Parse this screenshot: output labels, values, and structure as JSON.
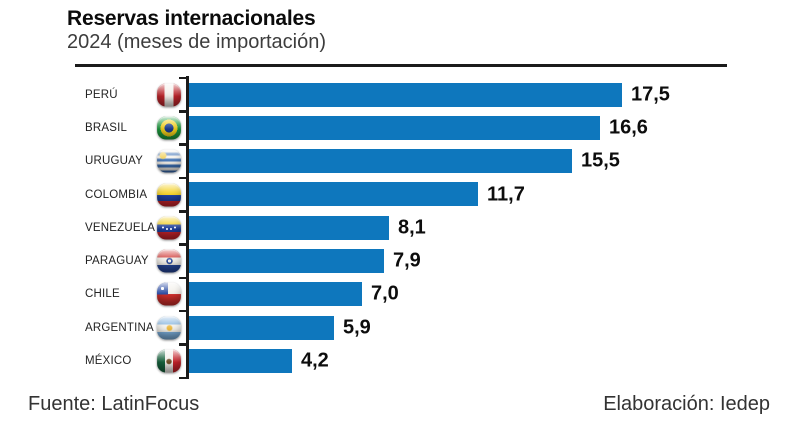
{
  "header": {
    "title": "Reservas internacionales",
    "subtitle": "2024 (meses de importación)"
  },
  "chart_data": {
    "type": "bar",
    "orientation": "horizontal",
    "title": "Reservas internacionales",
    "subtitle": "2024 (meses de importación)",
    "xlabel": "",
    "ylabel": "",
    "xlim": [
      0,
      18
    ],
    "grid": false,
    "legend": false,
    "bar_color": "#0e77bd",
    "categories": [
      "PERÚ",
      "BRASIL",
      "URUGUAY",
      "COLOMBIA",
      "VENEZUELA",
      "PARAGUAY",
      "CHILE",
      "ARGENTINA",
      "MÉXICO"
    ],
    "values": [
      17.5,
      16.6,
      15.5,
      11.7,
      8.1,
      7.9,
      7.0,
      5.9,
      4.2
    ],
    "value_labels": [
      "17,5",
      "16,6",
      "15,5",
      "11,7",
      "8,1",
      "7,9",
      "7,0",
      "5,9",
      "4,2"
    ],
    "flags": [
      "peru",
      "brasil",
      "uruguay",
      "colombia",
      "venezuela",
      "paraguay",
      "chile",
      "argentina",
      "mexico"
    ]
  },
  "footer": {
    "source": "Fuente: LatinFocus",
    "elaboration": "Elaboración: Iedep"
  }
}
